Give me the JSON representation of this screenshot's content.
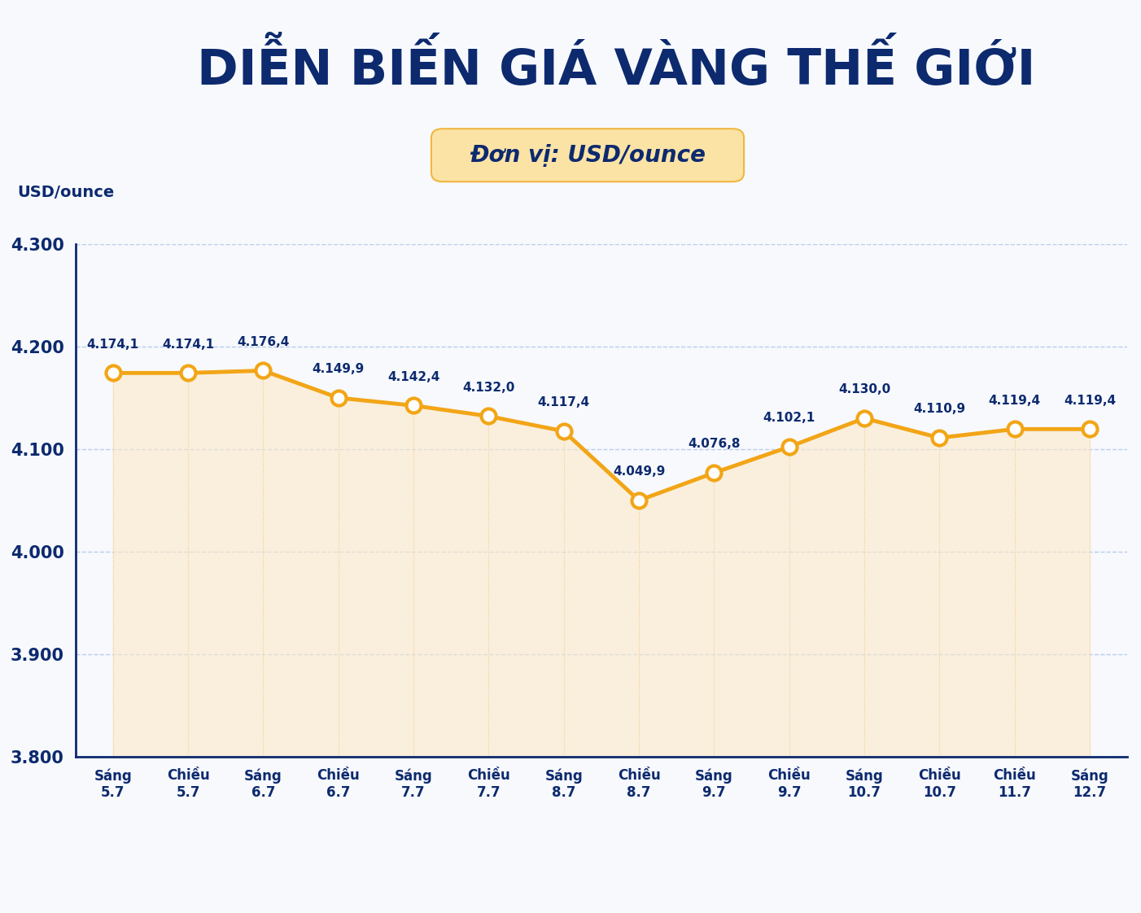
{
  "chart_data": {
    "type": "line",
    "title": "DIỄN BIẾN GIÁ VÀNG THẾ GIỚI",
    "subtitle": "Đơn vị: USD/ounce",
    "y_label": "USD/ounce",
    "categories": [
      "Sáng\n5.7",
      "Chiều\n5.7",
      "Sáng\n6.7",
      "Chiều\n6.7",
      "Sáng\n7.7",
      "Chiều\n7.7",
      "Sáng\n8.7",
      "Chiều\n8.7",
      "Sáng\n9.7",
      "Chiều\n9.7",
      "Sáng\n10.7",
      "Chiều\n10.7",
      "Chiều\n11.7",
      "Sáng\n12.7"
    ],
    "values": [
      4174.1,
      4174.1,
      4176.4,
      4149.9,
      4142.4,
      4132.0,
      4117.4,
      4049.9,
      4076.8,
      4102.1,
      4130.0,
      4110.9,
      4119.4,
      4119.4
    ],
    "value_labels": [
      "4.174,1",
      "4.174,1",
      "4.176,4",
      "4.149,9",
      "4.142,4",
      "4.132,0",
      "4.117,4",
      "4.049,9",
      "4.076,8",
      "4.102,1",
      "4.130,0",
      "4.110,9",
      "4.119,4",
      "4.119,4"
    ],
    "data_labels": true,
    "color": "#f2a516",
    "marker": "o",
    "line_style": "solid",
    "ylim": [
      3800,
      4300
    ],
    "yticks": [
      {
        "value": 3800,
        "label": "3.800"
      },
      {
        "value": 3900,
        "label": "3.900"
      },
      {
        "value": 4000,
        "label": "4.000"
      },
      {
        "value": 4100,
        "label": "4.100"
      },
      {
        "value": 4200,
        "label": "4.200"
      },
      {
        "value": 4300,
        "label": "4.300"
      }
    ],
    "grid": true
  }
}
